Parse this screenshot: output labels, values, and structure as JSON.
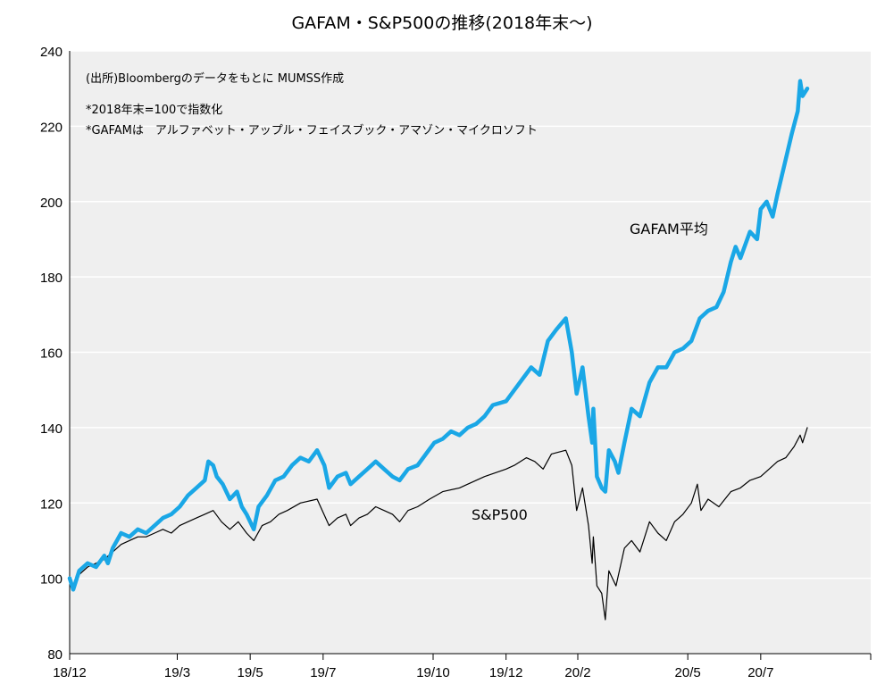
{
  "chart_data": {
    "type": "line",
    "title": "GAFAM・S&P500の推移(2018年末〜)",
    "ylim": [
      80,
      240
    ],
    "yticks": [
      80,
      100,
      120,
      140,
      160,
      180,
      200,
      220,
      240
    ],
    "xlim": [
      "2018-12-31",
      "2020-10-31"
    ],
    "xticks": [
      {
        "label": "18/12",
        "date": "2018-12-31"
      },
      {
        "label": "19/3",
        "date": "2019-03-31"
      },
      {
        "label": "19/5",
        "date": "2019-05-31"
      },
      {
        "label": "19/7",
        "date": "2019-07-31"
      },
      {
        "label": "19/10",
        "date": "2019-10-31"
      },
      {
        "label": "19/12",
        "date": "2019-12-31"
      },
      {
        "label": "20/2",
        "date": "2020-02-29"
      },
      {
        "label": "20/5",
        "date": "2020-05-31"
      },
      {
        "label": "20/7",
        "date": "2020-07-31"
      }
    ],
    "grid": true,
    "notes": [
      "(出所)Bloombergのデータをもとに MUMSS作成",
      "*2018年末=100で指数化",
      "*GAFAMは　アルファベット・アップル・フェイスブック・アマゾン・マイクロソフト"
    ],
    "series": [
      {
        "name": "GAFAM平均",
        "color": "#1aa7e6",
        "points": [
          [
            "2018-12-31",
            100
          ],
          [
            "2019-01-03",
            97
          ],
          [
            "2019-01-08",
            102
          ],
          [
            "2019-01-15",
            104
          ],
          [
            "2019-01-22",
            103
          ],
          [
            "2019-01-29",
            106
          ],
          [
            "2019-02-01",
            104
          ],
          [
            "2019-02-05",
            108
          ],
          [
            "2019-02-12",
            112
          ],
          [
            "2019-02-19",
            111
          ],
          [
            "2019-02-26",
            113
          ],
          [
            "2019-03-05",
            112
          ],
          [
            "2019-03-12",
            114
          ],
          [
            "2019-03-19",
            116
          ],
          [
            "2019-03-26",
            117
          ],
          [
            "2019-04-02",
            119
          ],
          [
            "2019-04-09",
            122
          ],
          [
            "2019-04-16",
            124
          ],
          [
            "2019-04-23",
            126
          ],
          [
            "2019-04-26",
            131
          ],
          [
            "2019-04-30",
            130
          ],
          [
            "2019-05-03",
            127
          ],
          [
            "2019-05-08",
            125
          ],
          [
            "2019-05-14",
            121
          ],
          [
            "2019-05-20",
            123
          ],
          [
            "2019-05-24",
            119
          ],
          [
            "2019-05-28",
            117
          ],
          [
            "2019-06-03",
            113
          ],
          [
            "2019-06-07",
            119
          ],
          [
            "2019-06-14",
            122
          ],
          [
            "2019-06-21",
            126
          ],
          [
            "2019-06-28",
            127
          ],
          [
            "2019-07-05",
            130
          ],
          [
            "2019-07-12",
            132
          ],
          [
            "2019-07-19",
            131
          ],
          [
            "2019-07-26",
            134
          ],
          [
            "2019-08-01",
            130
          ],
          [
            "2019-08-05",
            124
          ],
          [
            "2019-08-12",
            127
          ],
          [
            "2019-08-19",
            128
          ],
          [
            "2019-08-23",
            125
          ],
          [
            "2019-08-30",
            127
          ],
          [
            "2019-09-06",
            129
          ],
          [
            "2019-09-13",
            131
          ],
          [
            "2019-09-20",
            129
          ],
          [
            "2019-09-27",
            127
          ],
          [
            "2019-10-03",
            126
          ],
          [
            "2019-10-10",
            129
          ],
          [
            "2019-10-18",
            130
          ],
          [
            "2019-10-25",
            133
          ],
          [
            "2019-11-01",
            136
          ],
          [
            "2019-11-08",
            137
          ],
          [
            "2019-11-15",
            139
          ],
          [
            "2019-11-22",
            138
          ],
          [
            "2019-11-29",
            140
          ],
          [
            "2019-12-06",
            141
          ],
          [
            "2019-12-13",
            143
          ],
          [
            "2019-12-20",
            146
          ],
          [
            "2019-12-31",
            147
          ],
          [
            "2020-01-07",
            150
          ],
          [
            "2020-01-14",
            153
          ],
          [
            "2020-01-21",
            156
          ],
          [
            "2020-01-28",
            154
          ],
          [
            "2020-02-04",
            163
          ],
          [
            "2020-02-11",
            166
          ],
          [
            "2020-02-19",
            169
          ],
          [
            "2020-02-24",
            160
          ],
          [
            "2020-02-28",
            149
          ],
          [
            "2020-03-04",
            156
          ],
          [
            "2020-03-09",
            143
          ],
          [
            "2020-03-12",
            136
          ],
          [
            "2020-03-13",
            145
          ],
          [
            "2020-03-16",
            127
          ],
          [
            "2020-03-20",
            124
          ],
          [
            "2020-03-23",
            123
          ],
          [
            "2020-03-26",
            134
          ],
          [
            "2020-03-31",
            131
          ],
          [
            "2020-04-03",
            128
          ],
          [
            "2020-04-08",
            136
          ],
          [
            "2020-04-14",
            145
          ],
          [
            "2020-04-21",
            143
          ],
          [
            "2020-04-29",
            152
          ],
          [
            "2020-05-06",
            156
          ],
          [
            "2020-05-13",
            156
          ],
          [
            "2020-05-20",
            160
          ],
          [
            "2020-05-27",
            161
          ],
          [
            "2020-06-03",
            163
          ],
          [
            "2020-06-10",
            169
          ],
          [
            "2020-06-17",
            171
          ],
          [
            "2020-06-24",
            172
          ],
          [
            "2020-06-30",
            176
          ],
          [
            "2020-07-06",
            184
          ],
          [
            "2020-07-10",
            188
          ],
          [
            "2020-07-14",
            185
          ],
          [
            "2020-07-22",
            192
          ],
          [
            "2020-07-28",
            190
          ],
          [
            "2020-07-31",
            198
          ],
          [
            "2020-08-05",
            200
          ],
          [
            "2020-08-10",
            196
          ],
          [
            "2020-08-14",
            202
          ],
          [
            "2020-08-20",
            210
          ],
          [
            "2020-08-26",
            218
          ],
          [
            "2020-08-31",
            224
          ],
          [
            "2020-09-02",
            232
          ],
          [
            "2020-09-04",
            228
          ],
          [
            "2020-09-08",
            230
          ]
        ]
      },
      {
        "name": "S&P500",
        "color": "#000000",
        "points": [
          [
            "2018-12-31",
            100
          ],
          [
            "2019-01-03",
            98
          ],
          [
            "2019-01-08",
            101
          ],
          [
            "2019-01-15",
            103
          ],
          [
            "2019-01-22",
            104
          ],
          [
            "2019-01-29",
            105
          ],
          [
            "2019-02-05",
            107
          ],
          [
            "2019-02-12",
            109
          ],
          [
            "2019-02-19",
            110
          ],
          [
            "2019-02-26",
            111
          ],
          [
            "2019-03-05",
            111
          ],
          [
            "2019-03-12",
            112
          ],
          [
            "2019-03-19",
            113
          ],
          [
            "2019-03-26",
            112
          ],
          [
            "2019-04-02",
            114
          ],
          [
            "2019-04-09",
            115
          ],
          [
            "2019-04-16",
            116
          ],
          [
            "2019-04-23",
            117
          ],
          [
            "2019-04-30",
            118
          ],
          [
            "2019-05-07",
            115
          ],
          [
            "2019-05-14",
            113
          ],
          [
            "2019-05-21",
            115
          ],
          [
            "2019-05-28",
            112
          ],
          [
            "2019-06-03",
            110
          ],
          [
            "2019-06-10",
            114
          ],
          [
            "2019-06-17",
            115
          ],
          [
            "2019-06-24",
            117
          ],
          [
            "2019-07-01",
            118
          ],
          [
            "2019-07-12",
            120
          ],
          [
            "2019-07-26",
            121
          ],
          [
            "2019-08-05",
            114
          ],
          [
            "2019-08-12",
            116
          ],
          [
            "2019-08-19",
            117
          ],
          [
            "2019-08-23",
            114
          ],
          [
            "2019-08-30",
            116
          ],
          [
            "2019-09-06",
            117
          ],
          [
            "2019-09-13",
            119
          ],
          [
            "2019-09-20",
            118
          ],
          [
            "2019-09-27",
            117
          ],
          [
            "2019-10-03",
            115
          ],
          [
            "2019-10-10",
            118
          ],
          [
            "2019-10-18",
            119
          ],
          [
            "2019-10-28",
            121
          ],
          [
            "2019-11-08",
            123
          ],
          [
            "2019-11-22",
            124
          ],
          [
            "2019-11-29",
            125
          ],
          [
            "2019-12-06",
            126
          ],
          [
            "2019-12-13",
            127
          ],
          [
            "2019-12-31",
            129
          ],
          [
            "2020-01-07",
            130
          ],
          [
            "2020-01-17",
            132
          ],
          [
            "2020-01-24",
            131
          ],
          [
            "2020-01-31",
            129
          ],
          [
            "2020-02-07",
            133
          ],
          [
            "2020-02-19",
            134
          ],
          [
            "2020-02-24",
            130
          ],
          [
            "2020-02-28",
            118
          ],
          [
            "2020-03-04",
            124
          ],
          [
            "2020-03-09",
            114
          ],
          [
            "2020-03-12",
            104
          ],
          [
            "2020-03-13",
            111
          ],
          [
            "2020-03-16",
            98
          ],
          [
            "2020-03-20",
            96
          ],
          [
            "2020-03-23",
            89
          ],
          [
            "2020-03-26",
            102
          ],
          [
            "2020-04-01",
            98
          ],
          [
            "2020-04-08",
            108
          ],
          [
            "2020-04-14",
            110
          ],
          [
            "2020-04-21",
            107
          ],
          [
            "2020-04-29",
            115
          ],
          [
            "2020-05-06",
            112
          ],
          [
            "2020-05-13",
            110
          ],
          [
            "2020-05-20",
            115
          ],
          [
            "2020-05-27",
            117
          ],
          [
            "2020-06-03",
            120
          ],
          [
            "2020-06-08",
            125
          ],
          [
            "2020-06-11",
            118
          ],
          [
            "2020-06-17",
            121
          ],
          [
            "2020-06-26",
            119
          ],
          [
            "2020-07-06",
            123
          ],
          [
            "2020-07-14",
            124
          ],
          [
            "2020-07-22",
            126
          ],
          [
            "2020-07-31",
            127
          ],
          [
            "2020-08-07",
            129
          ],
          [
            "2020-08-14",
            131
          ],
          [
            "2020-08-21",
            132
          ],
          [
            "2020-08-28",
            135
          ],
          [
            "2020-09-02",
            138
          ],
          [
            "2020-09-04",
            136
          ],
          [
            "2020-09-08",
            140
          ]
        ]
      }
    ]
  }
}
